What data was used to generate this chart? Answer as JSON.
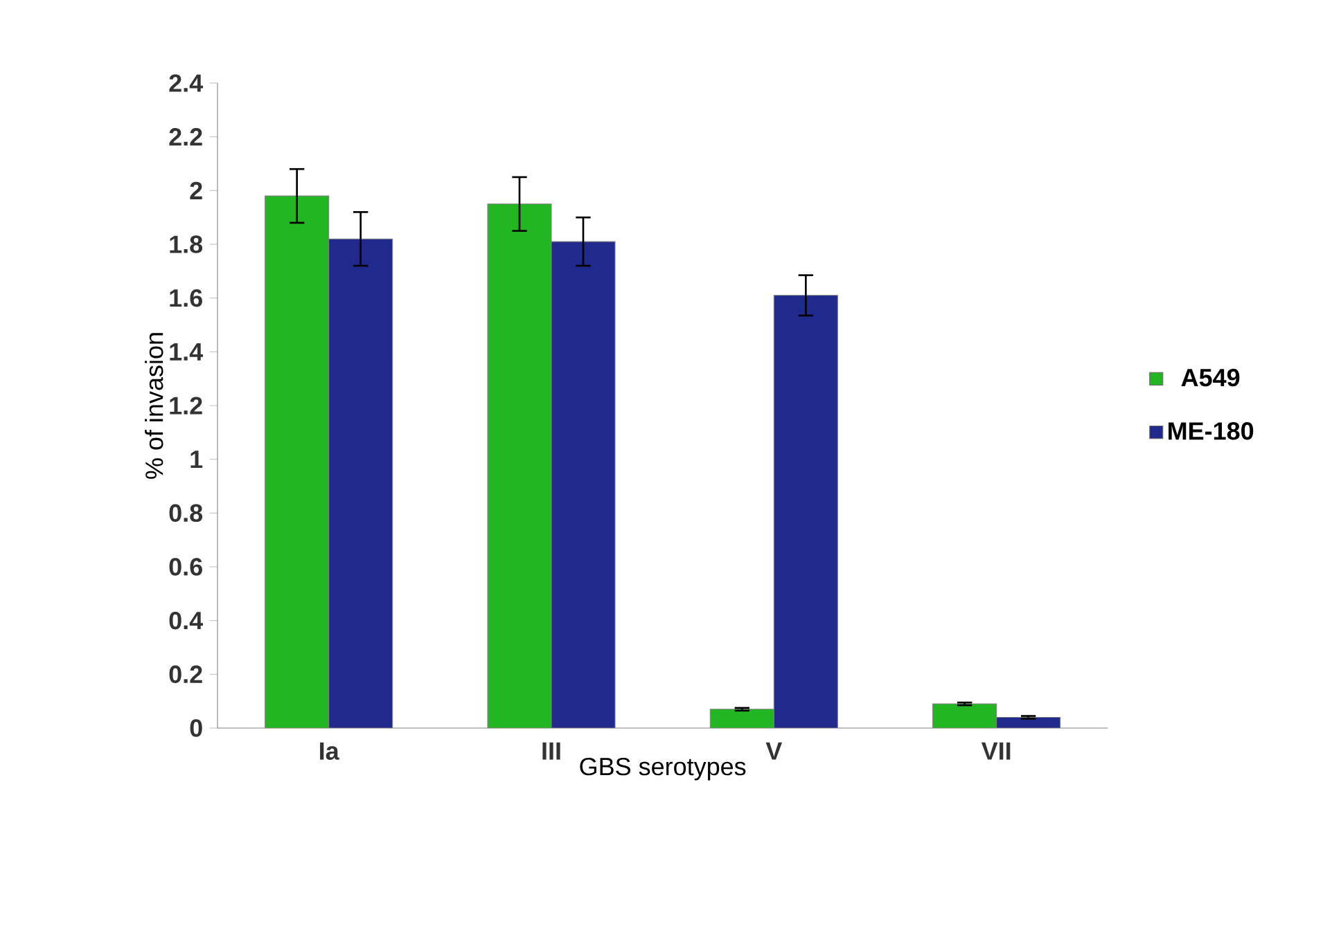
{
  "chart_data": {
    "type": "bar",
    "xlabel": "GBS serotypes",
    "ylabel": "%  of invasion",
    "categories": [
      "Ia",
      "III",
      "V",
      "VII"
    ],
    "series": [
      {
        "name": "A549",
        "color": "#22b622",
        "values": [
          1.98,
          1.95,
          0.07,
          0.09
        ],
        "errors": [
          0.1,
          0.1,
          0.005,
          0.005
        ]
      },
      {
        "name": "ME-180",
        "color": "#1f2a8c",
        "values": [
          1.82,
          1.81,
          1.61,
          0.04
        ],
        "errors": [
          0.1,
          0.09,
          0.075,
          0.005
        ]
      }
    ],
    "ylim": [
      0,
      2.4
    ],
    "yticks": [
      0,
      0.2,
      0.4,
      0.6,
      0.8,
      1,
      1.2,
      1.4,
      1.6,
      1.8,
      2,
      2.2,
      2.4
    ],
    "legend": "right",
    "grid": false
  }
}
